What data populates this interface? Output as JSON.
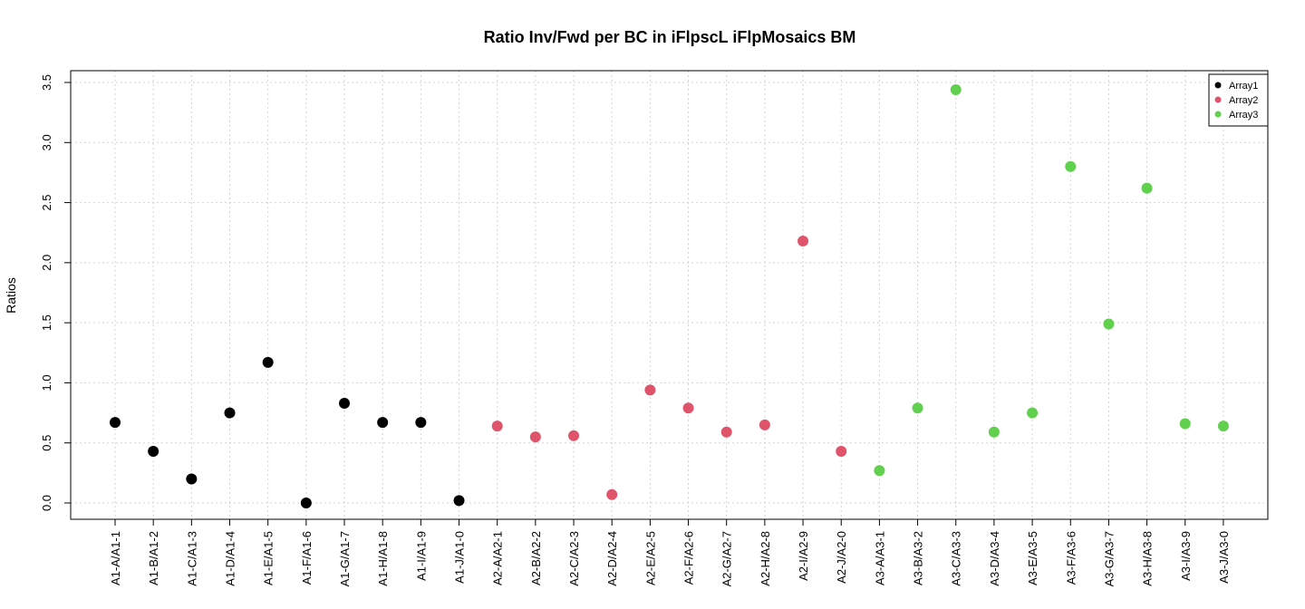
{
  "chart_data": {
    "type": "scatter",
    "title": "Ratio Inv/Fwd per BC in iFlpscL iFlpMosaics BM",
    "xlabel": "",
    "ylabel": "Ratios",
    "ylim": [
      0,
      3.5
    ],
    "y_ticks": [
      "0.0",
      "0.5",
      "1.0",
      "1.5",
      "2.0",
      "2.5",
      "3.0",
      "3.5"
    ],
    "grid": true,
    "legend_position": "top-right",
    "categories": [
      "A1-A/A1-1",
      "A1-B/A1-2",
      "A1-C/A1-3",
      "A1-D/A1-4",
      "A1-E/A1-5",
      "A1-F/A1-6",
      "A1-G/A1-7",
      "A1-H/A1-8",
      "A1-I/A1-9",
      "A1-J/A1-0",
      "A2-A/A2-1",
      "A2-B/A2-2",
      "A2-C/A2-3",
      "A2-D/A2-4",
      "A2-E/A2-5",
      "A2-F/A2-6",
      "A2-G/A2-7",
      "A2-H/A2-8",
      "A2-I/A2-9",
      "A2-J/A2-0",
      "A3-A/A3-1",
      "A3-B/A3-2",
      "A3-C/A3-3",
      "A3-D/A3-4",
      "A3-E/A3-5",
      "A3-F/A3-6",
      "A3-G/A3-7",
      "A3-H/A3-8",
      "A3-I/A3-9",
      "A3-J/A3-0"
    ],
    "series": [
      {
        "name": "Array1",
        "color": "#000000",
        "start_index": 0,
        "values": [
          0.67,
          0.43,
          0.2,
          0.75,
          1.17,
          0.0,
          0.83,
          0.67,
          0.67,
          0.02
        ]
      },
      {
        "name": "Array2",
        "color": "#DF536B",
        "start_index": 10,
        "values": [
          0.64,
          0.55,
          0.56,
          0.07,
          0.94,
          0.79,
          0.59,
          0.65,
          2.18,
          0.43
        ]
      },
      {
        "name": "Array3",
        "color": "#61D04F",
        "start_index": 20,
        "values": [
          0.27,
          0.79,
          3.44,
          0.59,
          0.75,
          2.8,
          1.49,
          2.62,
          0.66,
          0.64
        ]
      }
    ]
  }
}
